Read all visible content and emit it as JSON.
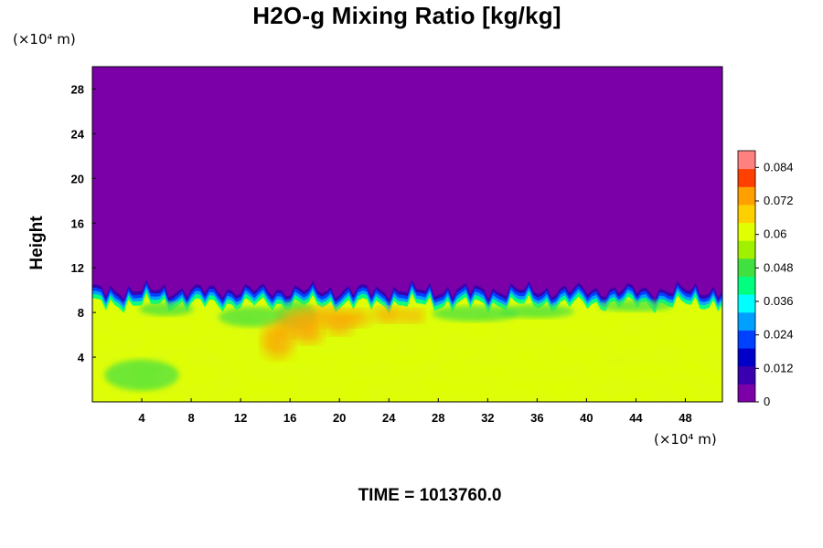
{
  "figure": {
    "time_label": "TIME = 1013760.0",
    "y_unit_label": "(×10⁴ m)",
    "x_unit_label": "(×10⁴ m)"
  },
  "chart_data": {
    "type": "heatmap",
    "title": "H2O-g Mixing Ratio [kg/kg]",
    "xlabel": "",
    "ylabel": "Height",
    "xlim": [
      0,
      51
    ],
    "ylim": [
      0,
      30
    ],
    "x_ticks": [
      4,
      8,
      12,
      16,
      20,
      24,
      28,
      32,
      36,
      40,
      44,
      48
    ],
    "y_ticks": [
      4,
      8,
      12,
      16,
      20,
      24,
      28
    ],
    "colorbar": {
      "range": [
        0,
        0.09
      ],
      "tick_values": [
        0,
        0.012,
        0.024,
        0.036,
        0.048,
        0.06,
        0.072,
        0.084
      ],
      "tick_labels": [
        "0",
        "0.012",
        "0.024",
        "0.036",
        "0.048",
        "0.06",
        "0.072",
        "0.084"
      ],
      "colors": [
        "#7b00a8",
        "#3a00b0",
        "#0000c8",
        "#0040ff",
        "#00a0ff",
        "#00ffff",
        "#00ff80",
        "#40e040",
        "#a0f000",
        "#e0ff00",
        "#ffd000",
        "#ffa000",
        "#ff4000",
        "#ff8080"
      ]
    },
    "field_regions": [
      {
        "name": "upper dry layer",
        "y_range": [
          10,
          30
        ],
        "value": 0.0
      },
      {
        "name": "transition layer",
        "y_range": [
          9,
          11
        ],
        "value_range": [
          0.003,
          0.04
        ]
      },
      {
        "name": "lower moist layer",
        "y_range": [
          0,
          9
        ],
        "value": 0.058
      },
      {
        "name": "moist plume",
        "x_range": [
          14,
          27
        ],
        "y_range": [
          4.5,
          8.5
        ],
        "value": 0.072
      }
    ]
  }
}
